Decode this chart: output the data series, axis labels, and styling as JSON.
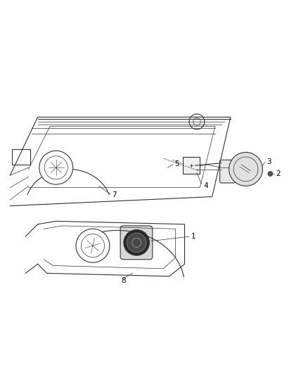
{
  "bg_color": "#ffffff",
  "line_color": "#333333",
  "label_color": "#000000",
  "fig_width": 4.38,
  "fig_height": 5.33
}
